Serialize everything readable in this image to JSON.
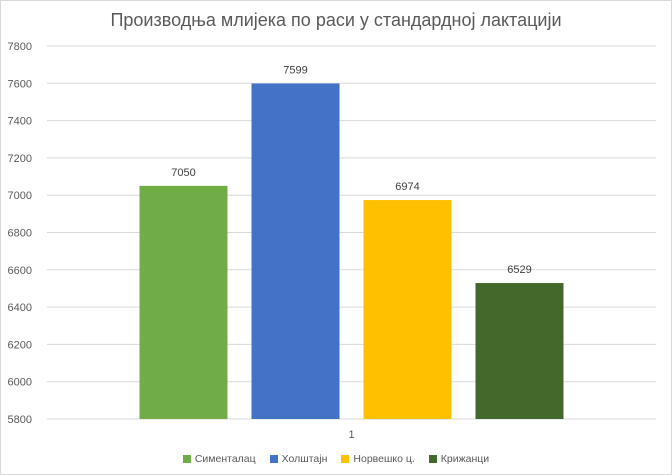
{
  "chart_data": {
    "type": "bar",
    "title": "Производња млијека по раси у стандардној лактацији",
    "categories": [
      "1"
    ],
    "series": [
      {
        "name": "Сименталац",
        "values": [
          7050
        ],
        "color": "#70ad47"
      },
      {
        "name": "Холштајн",
        "values": [
          7599
        ],
        "color": "#4472c4"
      },
      {
        "name": "Норвешко ц.",
        "values": [
          6974
        ],
        "color": "#ffc000"
      },
      {
        "name": "Крижанци",
        "values": [
          6529
        ],
        "color": "#43682b"
      }
    ],
    "ylim": [
      5800,
      7800
    ],
    "yticks": [
      5800,
      6000,
      6200,
      6400,
      6600,
      6800,
      7000,
      7200,
      7400,
      7600,
      7800
    ],
    "grid": true,
    "legend": "bottom",
    "data_labels": true
  }
}
